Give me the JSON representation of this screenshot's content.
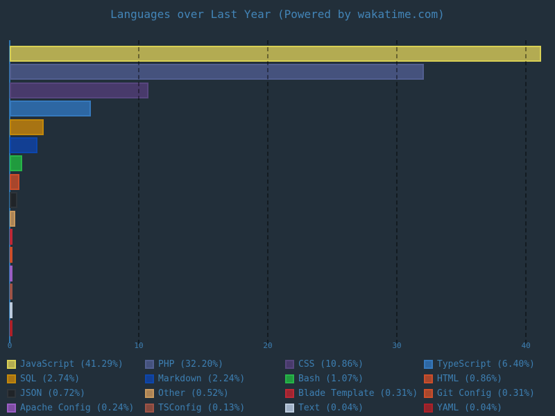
{
  "colors": {
    "background": "#222f3a",
    "title_text": "#4385b8",
    "tick_text": "#3d7fb2",
    "legend_text": "#3d7fb2",
    "axis_line": "#2f76b0",
    "gridline": "rgba(0,0,0,0.42)"
  },
  "chart_data": {
    "type": "bar",
    "orientation": "horizontal",
    "title": "Languages over Last Year (Powered by wakatime.com)",
    "xlabel": "",
    "ylabel": "",
    "xlim": [
      0,
      41.5
    ],
    "grid": "vertical-dashed",
    "legend_position": "bottom-4-columns",
    "x_ticks": {
      "values": [
        0,
        10,
        20,
        30,
        40
      ],
      "labels": [
        "0",
        "10",
        "20",
        "30",
        "40"
      ]
    },
    "categories": [
      "JavaScript",
      "PHP",
      "CSS",
      "TypeScript",
      "SQL",
      "Markdown",
      "Bash",
      "HTML",
      "JSON",
      "Other",
      "Blade Template",
      "Git Config",
      "Apache Config",
      "TSConfig",
      "Text",
      "YAML"
    ],
    "values": [
      41.29,
      32.2,
      10.86,
      6.4,
      2.74,
      2.24,
      1.07,
      0.86,
      0.72,
      0.52,
      0.31,
      0.31,
      0.24,
      0.13,
      0.04,
      0.04
    ],
    "bars": [
      {
        "name": "JavaScript",
        "percent": 41.29,
        "label": "JavaScript (41.29%)",
        "fill": "#b3ab52",
        "edge": "#d8d055"
      },
      {
        "name": "PHP",
        "percent": 32.2,
        "label": "PHP (32.20%)",
        "fill": "#45527d",
        "edge": "#525f90"
      },
      {
        "name": "CSS",
        "percent": 10.86,
        "label": "CSS (10.86%)",
        "fill": "#483a6b",
        "edge": "#57467e"
      },
      {
        "name": "TypeScript",
        "percent": 6.4,
        "label": "TypeScript (6.40%)",
        "fill": "#2d67a3",
        "edge": "#3679bd"
      },
      {
        "name": "SQL",
        "percent": 2.74,
        "label": "SQL (2.74%)",
        "fill": "#a87413",
        "edge": "#c2880b"
      },
      {
        "name": "Markdown",
        "percent": 2.24,
        "label": "Markdown (2.24%)",
        "fill": "#123f93",
        "edge": "#0d47ad"
      },
      {
        "name": "Bash",
        "percent": 1.07,
        "label": "Bash (1.07%)",
        "fill": "#209b3e",
        "edge": "#27b54a"
      },
      {
        "name": "HTML",
        "percent": 0.86,
        "label": "HTML (0.86%)",
        "fill": "#a8462c",
        "edge": "#cc4e2b"
      },
      {
        "name": "JSON",
        "percent": 0.72,
        "label": "JSON (0.72%)",
        "fill": "#202428",
        "edge": "#2e343a"
      },
      {
        "name": "Other",
        "percent": 0.52,
        "label": "Other (0.52%)",
        "fill": "#ab8355",
        "edge": "#c6985e"
      },
      {
        "name": "Blade Template",
        "percent": 0.31,
        "label": "Blade Template (0.31%)",
        "fill": "#9e2530",
        "edge": "#bd2836"
      },
      {
        "name": "Git Config",
        "percent": 0.31,
        "label": "Git Config (0.31%)",
        "fill": "#a8472c",
        "edge": "#cc4e2b"
      },
      {
        "name": "Apache Config",
        "percent": 0.24,
        "label": "Apache Config (0.24%)",
        "fill": "#7e4ea3",
        "edge": "#9a5ec4"
      },
      {
        "name": "TSConfig",
        "percent": 0.13,
        "label": "TSConfig (0.13%)",
        "fill": "#84493e",
        "edge": "#9e5347"
      },
      {
        "name": "Text",
        "percent": 0.04,
        "label": "Text (0.04%)",
        "fill": "#9fb0c6",
        "edge": "#bccbdd"
      },
      {
        "name": "YAML",
        "percent": 0.04,
        "label": "YAML (0.04%)",
        "fill": "#92232a",
        "edge": "#ad2129"
      }
    ]
  }
}
